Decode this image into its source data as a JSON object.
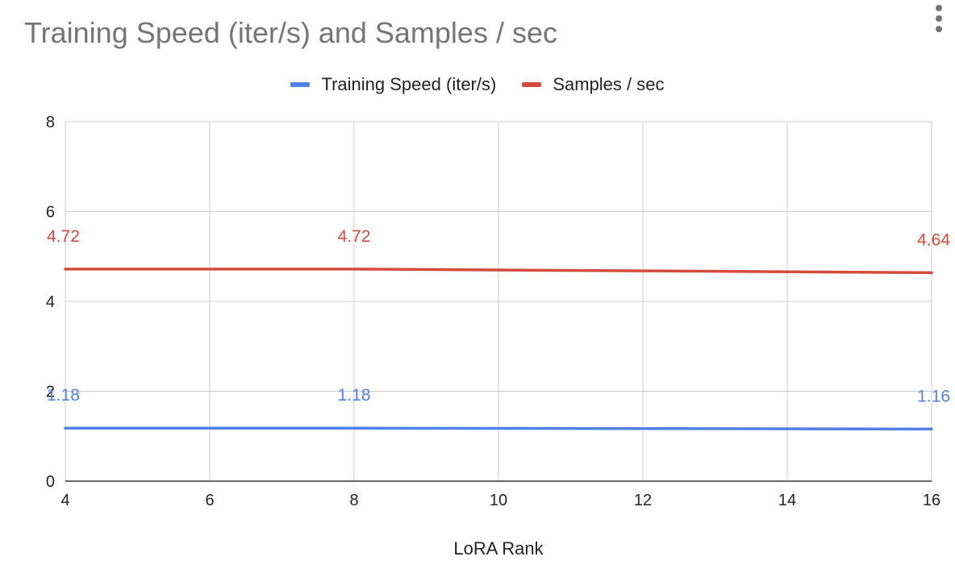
{
  "chart_data": {
    "type": "line",
    "title": "Training Speed (iter/s) and Samples / sec",
    "xlabel": "LoRA Rank",
    "ylabel": "",
    "xlim": [
      4,
      16
    ],
    "ylim": [
      0,
      8
    ],
    "x_ticks": [
      4,
      6,
      8,
      10,
      12,
      14,
      16
    ],
    "y_ticks": [
      0,
      2,
      4,
      6,
      8
    ],
    "grid": true,
    "legend": "top",
    "series": [
      {
        "name": "Training Speed (iter/s)",
        "color": "#4f81e6",
        "x": [
          4,
          8,
          16
        ],
        "values": [
          1.18,
          1.18,
          1.16
        ],
        "labels": [
          "1.18",
          "1.18",
          "1.16"
        ]
      },
      {
        "name": "Samples / sec",
        "color": "#d44b3c",
        "x": [
          4,
          8,
          16
        ],
        "values": [
          4.72,
          4.72,
          4.64
        ],
        "labels": [
          "4.72",
          "4.72",
          "4.64"
        ]
      }
    ]
  },
  "icons": {
    "menu": "vertical-ellipsis-icon"
  }
}
